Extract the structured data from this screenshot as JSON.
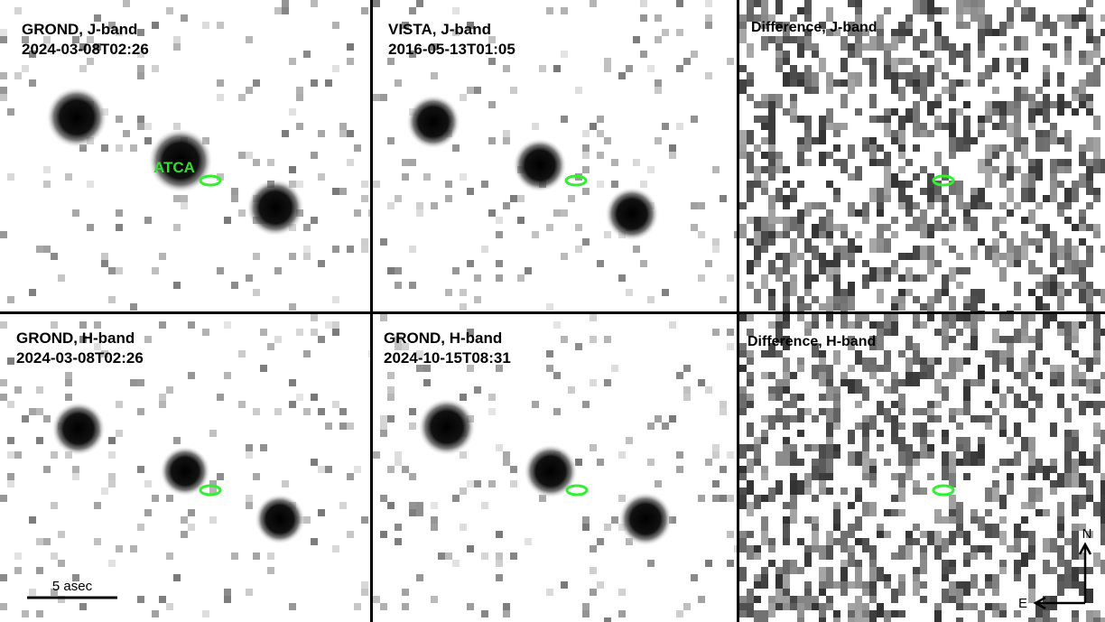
{
  "panels": [
    {
      "title": "GROND, J-band",
      "date": "2024-03-08T02:26"
    },
    {
      "title": "VISTA, J-band",
      "date": "2016-05-13T01:05"
    },
    {
      "title": "Difference, J-band"
    },
    {
      "title": "GROND, H-band",
      "date": "2024-03-08T02:26"
    },
    {
      "title": "GROND, H-band",
      "date": "2024-10-15T08:31"
    },
    {
      "title": "Difference, H-band"
    }
  ],
  "source_label": "ATCA",
  "scale_bar": "5 asec",
  "compass": {
    "north": "N",
    "east": "E"
  }
}
